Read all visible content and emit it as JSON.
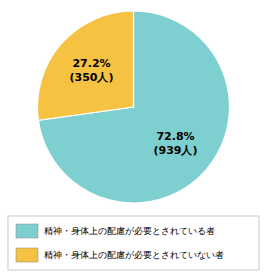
{
  "chart_data": {
    "type": "pie",
    "categories": [
      "精神・身体上の配慮が必要とされている者",
      "精神・身体上の配慮が必要とされていない者"
    ],
    "values": [
      72.8,
      27.2
    ],
    "value_labels": [
      "72.8%\n(939人)",
      "27.2%\n(350人)"
    ],
    "colors": [
      "#7ecfd0",
      "#f5c242"
    ],
    "data_labels": true,
    "legend": "bottom"
  }
}
